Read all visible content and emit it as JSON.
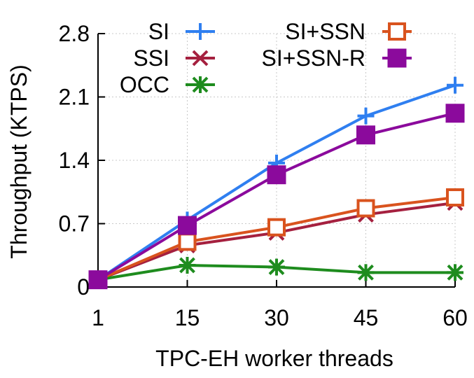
{
  "chart_data": {
    "type": "line",
    "xlabel": "TPC-EH worker threads",
    "ylabel": "Throughput (KTPS)",
    "x": [
      1,
      15,
      30,
      45,
      60
    ],
    "x_tick_labels": [
      "1",
      "15",
      "30",
      "45",
      "60"
    ],
    "ylim": [
      0,
      2.8
    ],
    "y_ticks": [
      0,
      0.7,
      1.4,
      2.1,
      2.8
    ],
    "y_tick_labels": [
      "0",
      "0.7",
      "1.4",
      "2.1",
      "2.8"
    ],
    "grid": true,
    "legend_position": "top",
    "series": [
      {
        "name": "SI",
        "color": "#2f7ff0",
        "marker": "plus",
        "values": [
          0.08,
          0.74,
          1.37,
          1.89,
          2.23
        ]
      },
      {
        "name": "SSI",
        "color": "#a5203f",
        "marker": "x",
        "values": [
          0.08,
          0.46,
          0.6,
          0.8,
          0.93
        ]
      },
      {
        "name": "OCC",
        "color": "#1e8c1e",
        "marker": "asterisk",
        "values": [
          0.08,
          0.24,
          0.22,
          0.16,
          0.16
        ]
      },
      {
        "name": "SI+SSN",
        "color": "#d9531e",
        "marker": "open-square",
        "values": [
          0.08,
          0.5,
          0.66,
          0.87,
          0.99
        ]
      },
      {
        "name": "SI+SSN-R",
        "color": "#8b0a9c",
        "marker": "filled-square",
        "values": [
          0.08,
          0.68,
          1.24,
          1.68,
          1.92
        ]
      }
    ]
  }
}
